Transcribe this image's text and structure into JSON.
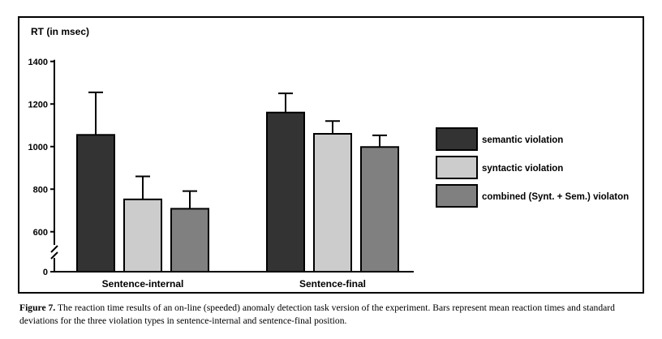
{
  "chart_data": {
    "type": "bar",
    "ylabel": "RT (in msec)",
    "ylim": [
      0,
      1400
    ],
    "axis_break": true,
    "yticks": [
      0,
      600,
      800,
      1000,
      1200,
      1400
    ],
    "ytick_labels": [
      "0",
      "600",
      "800",
      "1000",
      "1200",
      "1400"
    ],
    "categories": [
      "Sentence-internal",
      "Sentence-final"
    ],
    "series": [
      {
        "name": "semantic violation",
        "color": "#333333",
        "values": [
          1055,
          1160
        ],
        "sd": [
          200,
          90
        ]
      },
      {
        "name": "syntactic violation",
        "color": "#cccccc",
        "values": [
          752,
          1060
        ],
        "sd": [
          108,
          60
        ]
      },
      {
        "name": "combined (Synt. + Sem.) violaton",
        "color": "#808080",
        "values": [
          708,
          998
        ],
        "sd": [
          83,
          55
        ]
      }
    ],
    "legend_position": "right"
  },
  "caption": {
    "label": "Figure 7.",
    "text": "The reaction time results of an on-line (speeded) anomaly detection task version of the experiment. Bars represent mean reaction times and standard deviations for the three violation types in sentence-internal and sentence-final position."
  }
}
